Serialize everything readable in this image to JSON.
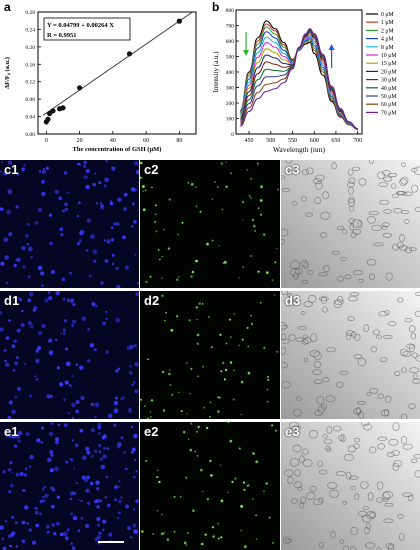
{
  "panel_a": {
    "letter": "a",
    "equation": "Y = 0.04799 + 0.00264 X",
    "r_value": "R = 0.9951",
    "ylabel": "ΔF/F₀ (a.u.)",
    "xlabel": "The concentration of GSH (μM)",
    "xticks": [
      "0",
      "20",
      "40",
      "60",
      "80"
    ],
    "yticks": [
      "0.00",
      "0.04",
      "0.08",
      "0.12",
      "0.16",
      "0.20",
      "0.24",
      "0.28"
    ]
  },
  "panel_b": {
    "letter": "b",
    "ylabel": "Intensity (a.u.)",
    "xlabel": "Wavelength (nm)",
    "xticks": [
      "450",
      "500",
      "550",
      "600",
      "650",
      "700"
    ],
    "yticks": [
      "0",
      "100",
      "200",
      "300",
      "400",
      "500",
      "600",
      "700",
      "800"
    ],
    "legend": [
      "0 μM",
      "1 μM",
      "2 μM",
      "4 μM",
      "8 μM",
      "10 μM",
      "15 μM",
      "20 μM",
      "30 μM",
      "40 μM",
      "50 μM",
      "60 μM",
      "70 μM"
    ]
  },
  "chart_data": [
    {
      "type": "scatter",
      "xlabel": "The concentration of GSH (μM)",
      "ylabel": "ΔF/F₀ (a.u.)",
      "xlim": [
        -5,
        90
      ],
      "ylim": [
        0.0,
        0.28
      ],
      "x": [
        0,
        1,
        2,
        4,
        8,
        10,
        20,
        50,
        80
      ],
      "y": [
        0.028,
        0.034,
        0.047,
        0.053,
        0.058,
        0.06,
        0.106,
        0.184,
        0.259
      ],
      "err": [
        0.007,
        0.005,
        0.004,
        0.004,
        0.004,
        0.004,
        0.003,
        0.003,
        0.003
      ],
      "fit": {
        "intercept": 0.04799,
        "slope": 0.00264
      }
    },
    {
      "type": "line",
      "xlabel": "Wavelength (nm)",
      "ylabel": "Intensity (a.u.)",
      "xlim": [
        420,
        710
      ],
      "ylim": [
        0,
        800
      ],
      "x": [
        430,
        450,
        470,
        490,
        510,
        530,
        550,
        565,
        580,
        590,
        600,
        620,
        640,
        660,
        680,
        700
      ],
      "series": [
        {
          "name": "0 μM",
          "values": [
            150,
            400,
            620,
            730,
            680,
            590,
            480,
            540,
            580,
            590,
            520,
            380,
            210,
            110,
            60,
            30
          ]
        },
        {
          "name": "1 μM",
          "values": [
            145,
            390,
            600,
            710,
            665,
            575,
            475,
            540,
            585,
            600,
            540,
            400,
            220,
            115,
            62,
            30
          ]
        },
        {
          "name": "2 μM",
          "values": [
            140,
            375,
            580,
            690,
            645,
            560,
            470,
            540,
            595,
            610,
            555,
            415,
            230,
            120,
            64,
            31
          ]
        },
        {
          "name": "4 μM",
          "values": [
            132,
            355,
            555,
            660,
            620,
            540,
            465,
            540,
            600,
            620,
            570,
            430,
            240,
            125,
            66,
            31
          ]
        },
        {
          "name": "8 μM",
          "values": [
            124,
            335,
            525,
            625,
            590,
            520,
            460,
            545,
            608,
            630,
            585,
            445,
            250,
            130,
            68,
            32
          ]
        },
        {
          "name": "10 μM",
          "values": [
            116,
            315,
            495,
            590,
            560,
            500,
            455,
            548,
            615,
            640,
            598,
            458,
            260,
            135,
            70,
            32
          ]
        },
        {
          "name": "15 μM",
          "values": [
            108,
            295,
            462,
            550,
            525,
            478,
            450,
            550,
            622,
            650,
            610,
            470,
            270,
            140,
            72,
            33
          ]
        },
        {
          "name": "20 μM",
          "values": [
            100,
            272,
            428,
            510,
            490,
            455,
            445,
            552,
            628,
            658,
            620,
            480,
            278,
            145,
            74,
            33
          ]
        },
        {
          "name": "30 μM",
          "values": [
            90,
            248,
            390,
            465,
            450,
            430,
            440,
            555,
            634,
            665,
            628,
            490,
            286,
            150,
            75,
            34
          ]
        },
        {
          "name": "40 μM",
          "values": [
            80,
            222,
            350,
            418,
            410,
            405,
            435,
            556,
            638,
            670,
            635,
            498,
            292,
            154,
            76,
            34
          ]
        },
        {
          "name": "50 μM",
          "values": [
            70,
            196,
            310,
            370,
            370,
            380,
            430,
            558,
            641,
            674,
            640,
            504,
            298,
            158,
            77,
            35
          ]
        },
        {
          "name": "60 μM",
          "values": [
            60,
            170,
            268,
            320,
            330,
            355,
            425,
            559,
            644,
            677,
            644,
            509,
            303,
            161,
            78,
            35
          ]
        },
        {
          "name": "70 μM",
          "values": [
            50,
            145,
            228,
            275,
            292,
            330,
            420,
            560,
            646,
            680,
            648,
            514,
            308,
            164,
            79,
            35
          ]
        }
      ]
    }
  ],
  "colors": {
    "series": [
      "#000000",
      "#c0392b",
      "#2ca02c",
      "#1f3fbf",
      "#17becf",
      "#d62ad6",
      "#b5a600",
      "#1a237e",
      "#8b1a1a",
      "#0b6b2e",
      "#2c3e8f",
      "#8b4513",
      "#6a1b9a"
    ],
    "arrow_green": "#2eb82e",
    "arrow_blue": "#2455c9"
  },
  "micrographs": [
    {
      "label": "c1",
      "kind": "blue"
    },
    {
      "label": "c2",
      "kind": "green"
    },
    {
      "label": "c3",
      "kind": "bright"
    },
    {
      "label": "d1",
      "kind": "blue"
    },
    {
      "label": "d2",
      "kind": "green"
    },
    {
      "label": "d3",
      "kind": "bright"
    },
    {
      "label": "e1",
      "kind": "blue"
    },
    {
      "label": "e2",
      "kind": "green"
    },
    {
      "label": "e3",
      "kind": "bright"
    }
  ]
}
